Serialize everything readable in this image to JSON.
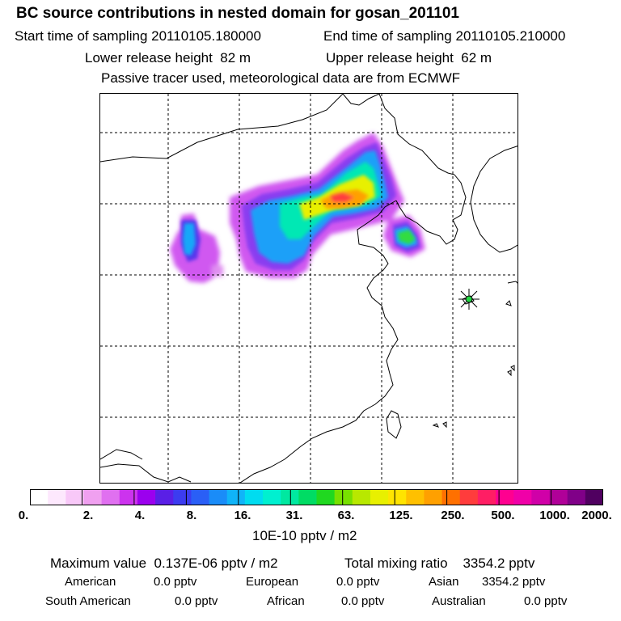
{
  "header": {
    "title": "BC  source contributions in nested domain for gosan_201101",
    "start_label": "Start time of sampling",
    "start_value": "20110105.180000",
    "end_label": "End time of sampling",
    "end_value": "20110105.210000",
    "lower_label": "Lower release height",
    "lower_value": "82 m",
    "upper_label": "Upper release height",
    "upper_value": "62 m",
    "tracer_note": "Passive tracer used, meteorological data are from ECMWF"
  },
  "map": {
    "receptor_marker": "gosan-receptor-star",
    "colors": {
      "coast": "#000000",
      "grid": "#000000"
    }
  },
  "colorbar": {
    "colors": [
      "#ffffff",
      "#fde8fd",
      "#f8c8f8",
      "#f0a0f0",
      "#e070f0",
      "#cc33ee",
      "#9b00ee",
      "#5a1fe6",
      "#3c3cf0",
      "#2a5ff6",
      "#1a8cf8",
      "#10b4f8",
      "#00dcf0",
      "#00f0d0",
      "#00e8a0",
      "#00dc64",
      "#20d820",
      "#78e000",
      "#b8e800",
      "#e8f000",
      "#ffe400",
      "#ffc000",
      "#ffa000",
      "#ff7000",
      "#ff3c3c",
      "#ff1e64",
      "#ff0090",
      "#f000a8",
      "#d000a8",
      "#b00098",
      "#800088",
      "#500060"
    ],
    "labels": [
      "0.",
      "2.",
      "4.",
      "8.",
      "16.",
      "31.",
      "63.",
      "125.",
      "250.",
      "500.",
      "1000.",
      "2000."
    ],
    "units": "10E-10 pptv / m2"
  },
  "stats": {
    "max_label": "Maximum value",
    "max_value": "0.137E-06 pptv / m2",
    "total_label": "Total mixing ratio",
    "total_value": "3354.2 pptv",
    "regions": [
      {
        "name": "American",
        "value": "0.0 pptv"
      },
      {
        "name": "European",
        "value": "0.0 pptv"
      },
      {
        "name": "Asian",
        "value": "3354.2 pptv"
      },
      {
        "name": "South American",
        "value": "0.0 pptv"
      },
      {
        "name": "African",
        "value": "0.0 pptv"
      },
      {
        "name": "Australian",
        "value": "0.0 pptv"
      }
    ]
  }
}
